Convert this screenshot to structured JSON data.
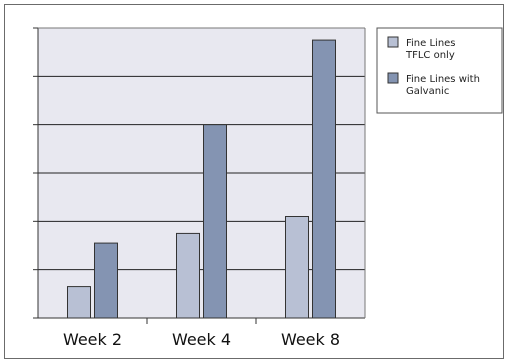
{
  "chart_data": {
    "type": "bar",
    "categories": [
      "Week 2",
      "Week 4",
      "Week 8"
    ],
    "series": [
      {
        "name": "Fine Lines TFLC only",
        "legend_lines": [
          "Fine Lines",
          "TFLC only"
        ],
        "values": [
          13,
          35,
          42
        ],
        "color": "#b8c0d4"
      },
      {
        "name": "Fine Lines with Galvanic",
        "legend_lines": [
          "Fine Lines with",
          "Galvanic"
        ],
        "values": [
          31,
          80,
          115
        ],
        "color": "#8494b2"
      }
    ],
    "ylim": [
      0,
      120
    ],
    "yticks": [
      0,
      20,
      40,
      60,
      80,
      100,
      120
    ],
    "grid": true,
    "legend_position": "top-right",
    "colors": {
      "plot_background": "#e8e8f0",
      "grid": "#222222",
      "bar_outline": "#333333"
    }
  }
}
